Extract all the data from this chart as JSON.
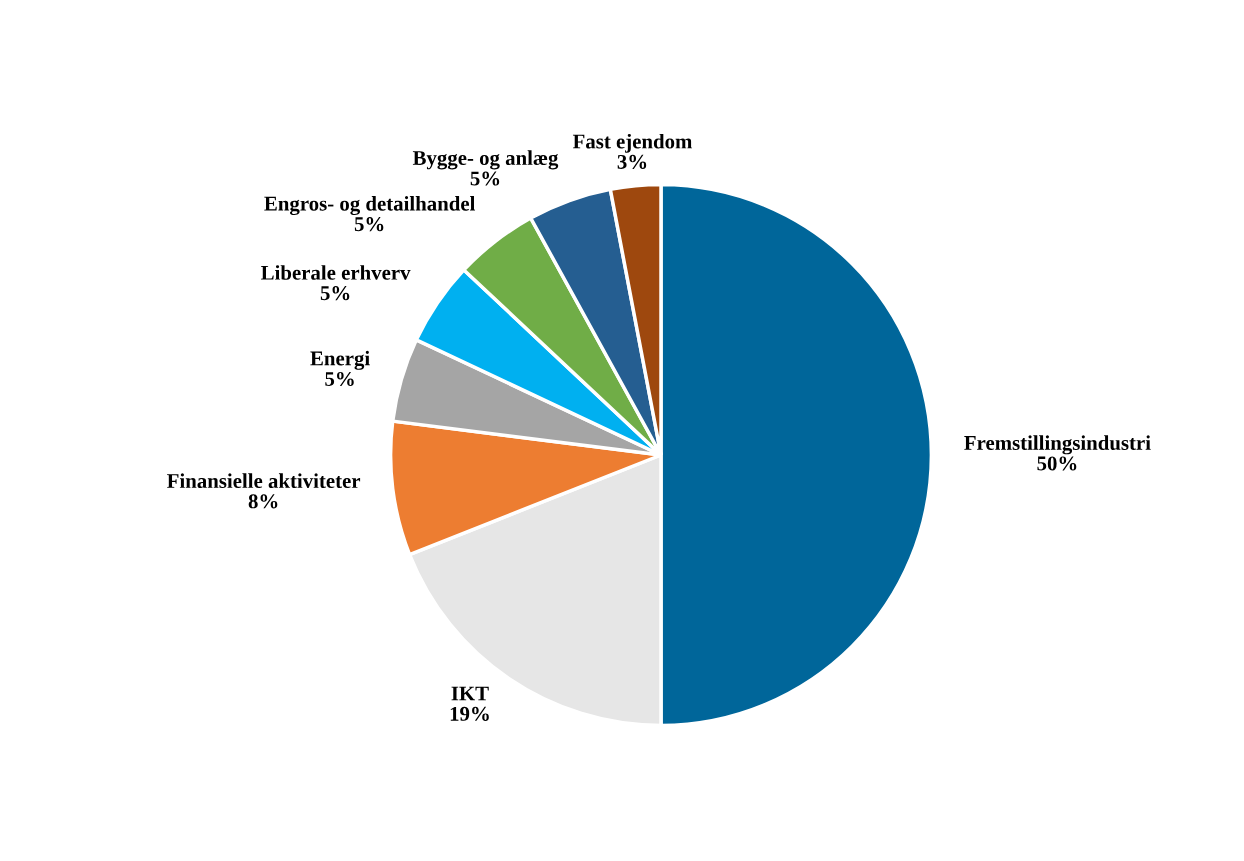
{
  "chart_data": {
    "type": "pie",
    "categories": [
      "Fremstillingsindustri",
      "IKT",
      "Finansielle aktiviteter",
      "Energi",
      "Liberale erhverv",
      "Engros- og detailhandel",
      "Bygge- og anlæg",
      "Fast ejendom"
    ],
    "values": [
      50,
      19,
      8,
      5,
      5,
      5,
      5,
      3
    ],
    "colors": [
      "#00669a",
      "#e6e6e6",
      "#ed7d31",
      "#a5a5a5",
      "#00b0f0",
      "#70ad47",
      "#255e91",
      "#9e480e"
    ],
    "value_labels": [
      "50%",
      "19%",
      "8%",
      "5%",
      "5%",
      "5%",
      "5%",
      "3%"
    ]
  }
}
